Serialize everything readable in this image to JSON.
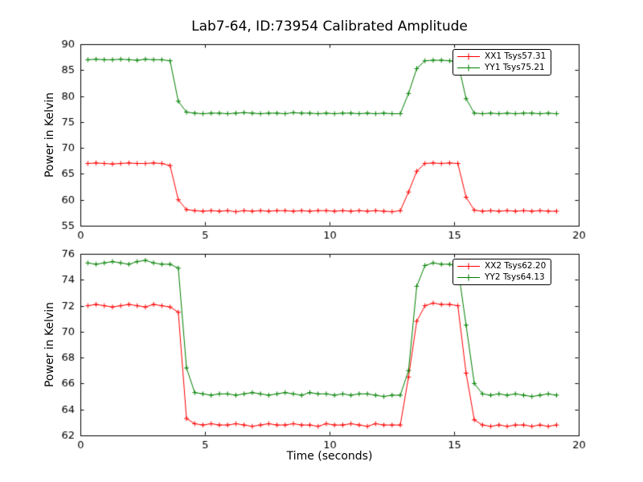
{
  "page": {
    "title": "Lab7-64, ID:73954 Calibrated Amplitude",
    "xlabel": "Time (seconds)",
    "ylabel": "Power in Kelvin"
  },
  "colors": {
    "xx": "#ff0000",
    "yy": "#008000",
    "axes": "#000000",
    "background": "#ffffff"
  },
  "chart_data": [
    {
      "type": "line",
      "subplot": "top",
      "ylabel": "Power in Kelvin",
      "xlim": [
        0,
        20
      ],
      "ylim": [
        55,
        90
      ],
      "xticks": [
        0,
        5,
        10,
        15,
        20
      ],
      "yticks": [
        55,
        60,
        65,
        70,
        75,
        80,
        85,
        90
      ],
      "grid": false,
      "legend_position": "upper right",
      "marker": "+",
      "x": [
        0.3,
        0.63,
        0.96,
        1.29,
        1.62,
        1.95,
        2.28,
        2.61,
        2.94,
        3.27,
        3.6,
        3.93,
        4.26,
        4.59,
        4.92,
        5.25,
        5.58,
        5.91,
        6.24,
        6.57,
        6.9,
        7.23,
        7.56,
        7.89,
        8.22,
        8.55,
        8.88,
        9.21,
        9.54,
        9.87,
        10.2,
        10.53,
        10.86,
        11.19,
        11.52,
        11.85,
        12.18,
        12.51,
        12.84,
        13.17,
        13.5,
        13.83,
        14.16,
        14.49,
        14.82,
        15.15,
        15.48,
        15.81,
        16.14,
        16.47,
        16.8,
        17.13,
        17.46,
        17.79,
        18.12,
        18.45,
        18.78,
        19.11
      ],
      "series": [
        {
          "name": "XX1 Tsys57.31",
          "color": "#ff0000",
          "values": [
            67.0,
            67.1,
            67.0,
            66.9,
            67.0,
            67.1,
            67.0,
            67.0,
            67.1,
            67.0,
            66.6,
            60.0,
            58.1,
            57.9,
            57.8,
            57.9,
            57.8,
            57.9,
            57.7,
            57.9,
            57.8,
            57.9,
            57.8,
            57.9,
            57.9,
            57.8,
            57.9,
            57.8,
            57.9,
            57.9,
            57.8,
            57.9,
            57.8,
            57.9,
            57.8,
            57.9,
            57.8,
            57.7,
            57.9,
            61.5,
            65.5,
            67.0,
            67.1,
            67.0,
            67.1,
            67.0,
            60.5,
            58.0,
            57.8,
            57.9,
            57.8,
            57.9,
            57.8,
            57.9,
            57.8,
            57.9,
            57.8,
            57.8
          ]
        },
        {
          "name": "YY1 Tsys75.21",
          "color": "#008000",
          "values": [
            87.0,
            87.1,
            87.0,
            87.0,
            87.1,
            87.0,
            86.9,
            87.1,
            87.0,
            87.0,
            86.8,
            79.0,
            76.9,
            76.7,
            76.6,
            76.7,
            76.7,
            76.6,
            76.7,
            76.8,
            76.7,
            76.6,
            76.7,
            76.7,
            76.6,
            76.8,
            76.7,
            76.7,
            76.6,
            76.7,
            76.6,
            76.7,
            76.7,
            76.6,
            76.7,
            76.6,
            76.7,
            76.6,
            76.6,
            80.5,
            85.3,
            86.8,
            86.9,
            86.9,
            86.8,
            86.5,
            79.5,
            76.7,
            76.6,
            76.7,
            76.6,
            76.7,
            76.6,
            76.7,
            76.7,
            76.6,
            76.7,
            76.6
          ]
        }
      ]
    },
    {
      "type": "line",
      "subplot": "bottom",
      "ylabel": "Power in Kelvin",
      "xlabel": "Time (seconds)",
      "xlim": [
        0,
        20
      ],
      "ylim": [
        62,
        76
      ],
      "xticks": [
        0,
        5,
        10,
        15,
        20
      ],
      "yticks": [
        62,
        64,
        66,
        68,
        70,
        72,
        74,
        76
      ],
      "grid": false,
      "legend_position": "upper right",
      "marker": "+",
      "x": [
        0.3,
        0.63,
        0.96,
        1.29,
        1.62,
        1.95,
        2.28,
        2.61,
        2.94,
        3.27,
        3.6,
        3.93,
        4.26,
        4.59,
        4.92,
        5.25,
        5.58,
        5.91,
        6.24,
        6.57,
        6.9,
        7.23,
        7.56,
        7.89,
        8.22,
        8.55,
        8.88,
        9.21,
        9.54,
        9.87,
        10.2,
        10.53,
        10.86,
        11.19,
        11.52,
        11.85,
        12.18,
        12.51,
        12.84,
        13.17,
        13.5,
        13.83,
        14.16,
        14.49,
        14.82,
        15.15,
        15.48,
        15.81,
        16.14,
        16.47,
        16.8,
        17.13,
        17.46,
        17.79,
        18.12,
        18.45,
        18.78,
        19.11
      ],
      "series": [
        {
          "name": "XX2 Tsys62.20",
          "color": "#ff0000",
          "values": [
            72.0,
            72.1,
            72.0,
            71.9,
            72.0,
            72.1,
            72.0,
            71.9,
            72.1,
            72.0,
            71.9,
            71.5,
            63.3,
            62.9,
            62.8,
            62.9,
            62.8,
            62.8,
            62.9,
            62.8,
            62.7,
            62.8,
            62.9,
            62.8,
            62.8,
            62.9,
            62.8,
            62.8,
            62.7,
            62.9,
            62.8,
            62.8,
            62.9,
            62.8,
            62.7,
            62.9,
            62.8,
            62.8,
            62.8,
            66.5,
            70.8,
            72.0,
            72.2,
            72.1,
            72.1,
            72.0,
            66.8,
            63.2,
            62.8,
            62.7,
            62.8,
            62.7,
            62.8,
            62.8,
            62.7,
            62.8,
            62.7,
            62.8
          ]
        },
        {
          "name": "YY2 Tsys64.13",
          "color": "#008000",
          "values": [
            75.3,
            75.2,
            75.3,
            75.4,
            75.3,
            75.2,
            75.4,
            75.5,
            75.3,
            75.2,
            75.2,
            74.9,
            67.2,
            65.3,
            65.2,
            65.1,
            65.2,
            65.2,
            65.1,
            65.2,
            65.3,
            65.2,
            65.1,
            65.2,
            65.3,
            65.2,
            65.1,
            65.3,
            65.2,
            65.2,
            65.1,
            65.2,
            65.1,
            65.2,
            65.2,
            65.1,
            65.0,
            65.1,
            65.1,
            67.0,
            73.5,
            75.1,
            75.3,
            75.2,
            75.2,
            75.0,
            70.5,
            66.0,
            65.2,
            65.1,
            65.2,
            65.1,
            65.2,
            65.1,
            65.0,
            65.1,
            65.2,
            65.1
          ]
        }
      ]
    }
  ]
}
